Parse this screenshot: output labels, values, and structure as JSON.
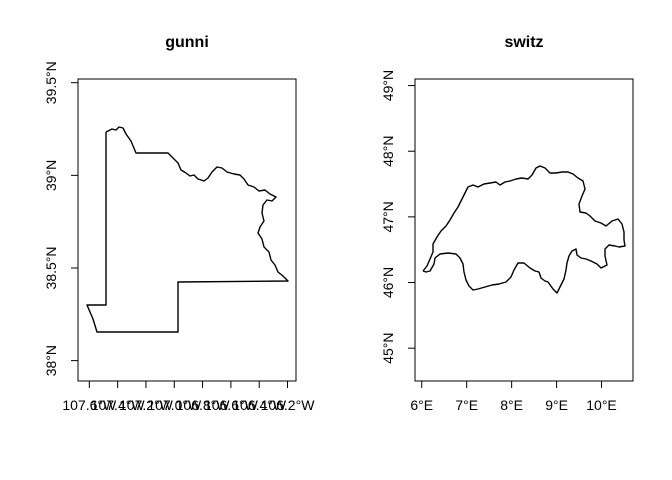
{
  "maps": [
    {
      "id": "gunni",
      "title": "gunni",
      "x_ticks": [
        {
          "lon": -107.6,
          "label": "107.6°W"
        },
        {
          "lon": -107.4,
          "label": "107.4°W"
        },
        {
          "lon": -107.2,
          "label": "107.2°W"
        },
        {
          "lon": -107.0,
          "label": "107.0°W"
        },
        {
          "lon": -106.8,
          "label": "106.8°W"
        },
        {
          "lon": -106.6,
          "label": "106.6°W"
        },
        {
          "lon": -106.4,
          "label": "106.4°W"
        },
        {
          "lon": -106.2,
          "label": "106.2°W"
        }
      ],
      "y_ticks": [
        {
          "lat": 38.0,
          "label": "38°N"
        },
        {
          "lat": 38.5,
          "label": "38.5°N"
        },
        {
          "lat": 39.0,
          "label": "39°N"
        },
        {
          "lat": 39.5,
          "label": "39.5°N"
        }
      ],
      "xlim": [
        -107.68,
        -106.14
      ],
      "ylim": [
        37.89,
        39.52
      ]
    },
    {
      "id": "switz",
      "title": "switz",
      "x_ticks": [
        {
          "lon": 6,
          "label": "6°E"
        },
        {
          "lon": 7,
          "label": "7°E"
        },
        {
          "lon": 8,
          "label": "8°E"
        },
        {
          "lon": 9,
          "label": "9°E"
        },
        {
          "lon": 10,
          "label": "10°E"
        }
      ],
      "y_ticks": [
        {
          "lat": 45,
          "label": "45°N"
        },
        {
          "lat": 46,
          "label": "46°N"
        },
        {
          "lat": 47,
          "label": "47°N"
        },
        {
          "lat": 48,
          "label": "48°N"
        },
        {
          "lat": 49,
          "label": "49°N"
        }
      ],
      "xlim": [
        5.85,
        10.7
      ],
      "ylim": [
        44.5,
        49.1
      ]
    }
  ]
}
